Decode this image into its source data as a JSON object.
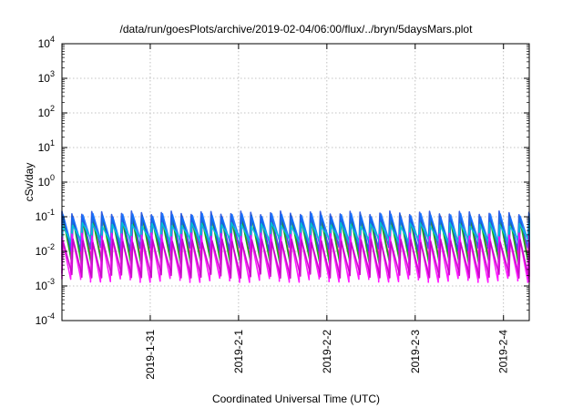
{
  "chart_data": {
    "type": "line",
    "title": "/data/run/goesPlots/archive/2019-02-04/06:00/flux/../bryn/5daysMars.plot",
    "xlabel": "Coordinated Universal Time (UTC)",
    "ylabel": "cSv/day",
    "yscale": "log",
    "ylim": [
      0.0001,
      10000
    ],
    "xlim": [
      "2019-01-30 00:00",
      "2019-02-04 07:00"
    ],
    "xticks": [
      {
        "value": "2019-01-31 00:00",
        "label": "2019-1-31"
      },
      {
        "value": "2019-02-01 00:00",
        "label": "2019-2-1"
      },
      {
        "value": "2019-02-02 00:00",
        "label": "2019-2-2"
      },
      {
        "value": "2019-02-03 00:00",
        "label": "2019-2-3"
      },
      {
        "value": "2019-02-04 00:00",
        "label": "2019-2-4"
      }
    ],
    "yticks": [
      {
        "exp": -4
      },
      {
        "exp": -3
      },
      {
        "exp": -2
      },
      {
        "exp": -1
      },
      {
        "exp": 0
      },
      {
        "exp": 1
      },
      {
        "exp": 2
      },
      {
        "exp": 3
      },
      {
        "exp": 4
      }
    ],
    "ytick_base": "10",
    "grid": true,
    "legend": "none",
    "sawtooth_period_hours": 2.7,
    "series": [
      {
        "color": "#e0008c",
        "peak": 0.09,
        "trough": 0.006,
        "values_range": [
          0.006,
          0.09
        ]
      },
      {
        "color": "#00b000",
        "peak": 0.1,
        "trough": 0.005,
        "values_range": [
          0.005,
          0.1
        ]
      },
      {
        "color": "#2050e0",
        "peak": 0.13,
        "trough": 0.012,
        "values_range": [
          0.012,
          0.13
        ]
      },
      {
        "color": "#1070ff",
        "peak": 0.11,
        "trough": 0.015,
        "values_range": [
          0.015,
          0.11
        ]
      },
      {
        "color": "#00c8d8",
        "peak": 0.06,
        "trough": 0.02,
        "values_range": [
          0.02,
          0.06
        ]
      },
      {
        "color": "#ff00ff",
        "peak": 0.03,
        "trough": 0.0015,
        "values_range": [
          0.0015,
          0.03
        ]
      },
      {
        "color": "#c000c0",
        "peak": 0.02,
        "trough": 0.002,
        "values_range": [
          0.002,
          0.02
        ]
      }
    ]
  }
}
